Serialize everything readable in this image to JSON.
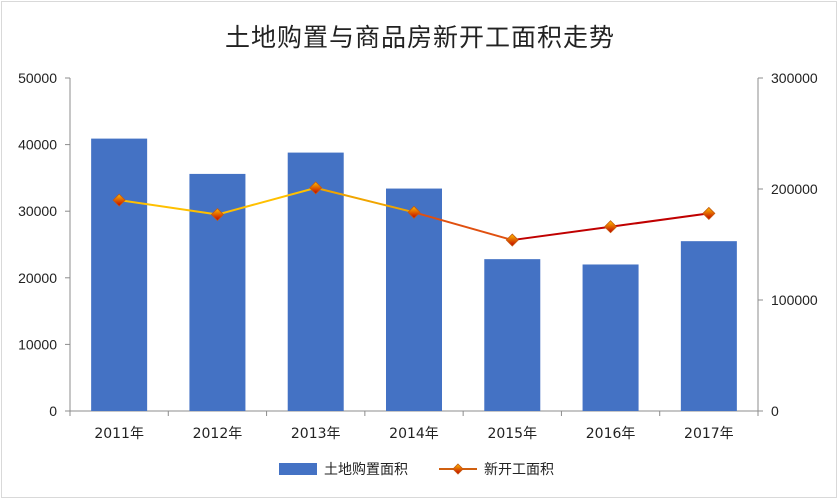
{
  "chart_data": {
    "type": "bar+line",
    "title": "土地购置与商品房新开工面积走势",
    "categories": [
      "2011年",
      "2012年",
      "2013年",
      "2014年",
      "2015年",
      "2016年",
      "2017年"
    ],
    "series": [
      {
        "name": "土地购置面积",
        "type": "bar",
        "axis": "left",
        "color": "#4472c4",
        "values": [
          40900,
          35600,
          38800,
          33400,
          22800,
          22000,
          25500
        ]
      },
      {
        "name": "新开工面积",
        "type": "line",
        "axis": "right",
        "color": "#c00000",
        "values": [
          190000,
          177000,
          201000,
          179000,
          154000,
          166000,
          178000
        ]
      }
    ],
    "y_left": {
      "ticks": [
        "0",
        "10000",
        "20000",
        "30000",
        "40000",
        "50000"
      ],
      "ylim": [
        0,
        50000
      ]
    },
    "y_right": {
      "ticks": [
        "0",
        "100000",
        "200000",
        "300000"
      ],
      "ylim": [
        0,
        300000
      ]
    },
    "grid": false,
    "legend": "bottom"
  }
}
